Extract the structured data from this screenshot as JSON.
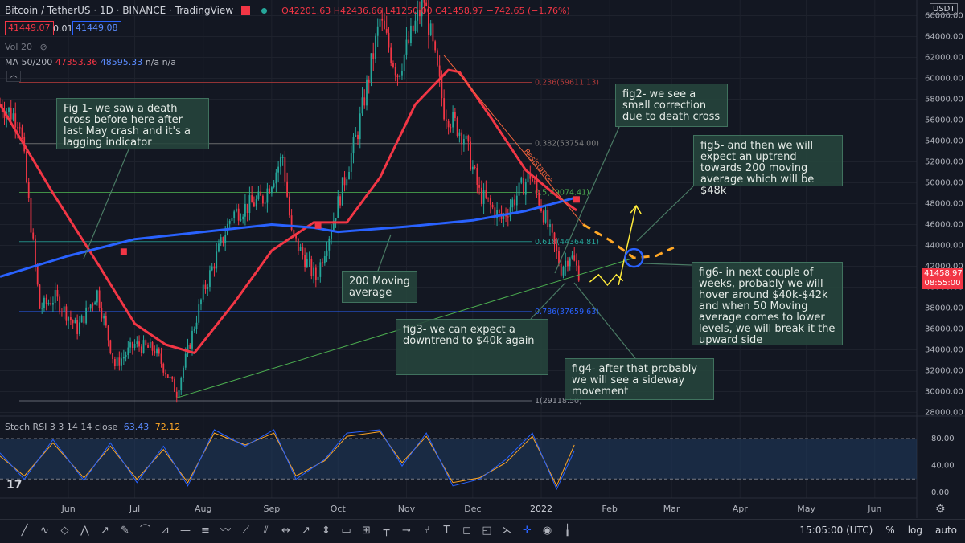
{
  "header": {
    "symbol": "Bitcoin / TetherUS · 1D · BINANCE · TradingView",
    "ohlc": "O42201.63 H42436.66 L41250.00 C41458.97 −742.65 (−1.76%)",
    "bid": "41449.07",
    "spread": "0.01",
    "ask": "41449.08",
    "vol": "Vol 20",
    "ma_label": "MA 50/200",
    "ma50_value": "47353.36",
    "ma200_value": "48595.33",
    "ma_na": "n/a n/a",
    "currency": "USDT"
  },
  "last_price": {
    "value": "41458.97",
    "time": "08:55:00"
  },
  "rsi_header": {
    "label": "Stoch RSI 3 3 14 14 close",
    "k": "63.43",
    "d": "72.12"
  },
  "colors": {
    "background": "#131722",
    "up": "#26a69a",
    "down": "#f23645",
    "ma50": "#f23645",
    "ma200": "#2962ff",
    "annotation": "#ffa726"
  },
  "chart_data": {
    "type": "candlestick",
    "ylim": [
      27500,
      67500
    ],
    "price_ticks": [
      28000,
      30000,
      32000,
      34000,
      36000,
      38000,
      40000,
      42000,
      44000,
      46000,
      48000,
      50000,
      52000,
      54000,
      56000,
      58000,
      60000,
      62000,
      64000,
      66000
    ],
    "price_tick_labels": [
      "28000.00",
      "30000.00",
      "32000.00",
      "34000.00",
      "36000.00",
      "38000.00",
      "40000.00",
      "42000.00",
      "44000.00",
      "46000.00",
      "48000.00",
      "50000.00",
      "52000.00",
      "54000.00",
      "56000.00",
      "58000.00",
      "60000.00",
      "62000.00",
      "64000.00",
      "66000.00"
    ],
    "x_labels": [
      "Jun",
      "Jul",
      "Aug",
      "Sep",
      "Oct",
      "Nov",
      "Dec",
      "2022",
      "Feb",
      "Mar",
      "Apr",
      "May",
      "Jun"
    ],
    "x_label_dates": [
      "2021-06-01",
      "2021-07-01",
      "2021-08-01",
      "2021-09-01",
      "2021-10-01",
      "2021-11-01",
      "2021-12-01",
      "2022-01-01",
      "2022-02-01",
      "2022-03-01",
      "2022-04-01",
      "2022-05-01",
      "2022-06-01"
    ],
    "close_path": [
      [
        "2021-05-01",
        57500
      ],
      [
        "2021-05-10",
        56000
      ],
      [
        "2021-05-19",
        38000
      ],
      [
        "2021-05-26",
        39000
      ],
      [
        "2021-06-05",
        36000
      ],
      [
        "2021-06-14",
        39500
      ],
      [
        "2021-06-22",
        32500
      ],
      [
        "2021-07-01",
        34500
      ],
      [
        "2021-07-10",
        34000
      ],
      [
        "2021-07-20",
        29900
      ],
      [
        "2021-08-01",
        39500
      ],
      [
        "2021-08-14",
        47000
      ],
      [
        "2021-08-28",
        48500
      ],
      [
        "2021-09-06",
        52500
      ],
      [
        "2021-09-10",
        45000
      ],
      [
        "2021-09-21",
        40800
      ],
      [
        "2021-10-01",
        48000
      ],
      [
        "2021-10-10",
        55000
      ],
      [
        "2021-10-20",
        65500
      ],
      [
        "2021-10-28",
        60500
      ],
      [
        "2021-11-09",
        67500
      ],
      [
        "2021-11-18",
        57000
      ],
      [
        "2021-11-27",
        54500
      ],
      [
        "2021-12-04",
        49000
      ],
      [
        "2021-12-14",
        46500
      ],
      [
        "2021-12-27",
        50800
      ],
      [
        "2022-01-03",
        46500
      ],
      [
        "2022-01-10",
        41800
      ],
      [
        "2022-01-14",
        43200
      ],
      [
        "2022-01-18",
        41400
      ]
    ],
    "ma50": [
      [
        "2021-05-01",
        57500
      ],
      [
        "2021-05-25",
        49000
      ],
      [
        "2021-06-15",
        42000
      ],
      [
        "2021-07-01",
        36500
      ],
      [
        "2021-07-15",
        34500
      ],
      [
        "2021-07-28",
        33700
      ],
      [
        "2021-08-15",
        38500
      ],
      [
        "2021-09-01",
        43500
      ],
      [
        "2021-09-20",
        46200
      ],
      [
        "2021-10-05",
        46200
      ],
      [
        "2021-10-20",
        50500
      ],
      [
        "2021-11-05",
        57500
      ],
      [
        "2021-11-20",
        60800
      ],
      [
        "2021-11-25",
        60600
      ],
      [
        "2021-12-10",
        56000
      ],
      [
        "2021-12-25",
        51200
      ],
      [
        "2022-01-10",
        48400
      ],
      [
        "2022-01-17",
        47350
      ]
    ],
    "ma200": [
      [
        "2021-05-01",
        41000
      ],
      [
        "2021-06-01",
        43000
      ],
      [
        "2021-07-01",
        44600
      ],
      [
        "2021-08-01",
        45300
      ],
      [
        "2021-09-01",
        46000
      ],
      [
        "2021-09-20",
        45700
      ],
      [
        "2021-10-01",
        45300
      ],
      [
        "2021-11-01",
        45800
      ],
      [
        "2021-12-01",
        46400
      ],
      [
        "2021-12-25",
        47300
      ],
      [
        "2022-01-10",
        48200
      ],
      [
        "2022-01-17",
        48600
      ]
    ],
    "fib_levels": [
      {
        "label": "0.236(59611.13)",
        "value": 59611.13
      },
      {
        "label": "0.382(53754.00)",
        "value": 53754.0
      },
      {
        "label": "0.5(49074.41)",
        "value": 49074.41
      },
      {
        "label": "0.618(44364.81)",
        "value": 44364.81
      },
      {
        "label": "0.786(37659.63)",
        "value": 37659.63
      },
      {
        "label": "1(29118.50)",
        "value": 29118.5
      }
    ],
    "resistance_label": "Resistance",
    "resistance_line": [
      [
        "2021-11-18",
        62200
      ],
      [
        "2022-01-20",
        46000
      ]
    ],
    "support_line": [
      [
        "2021-07-20",
        29400
      ],
      [
        "2022-02-12",
        42800
      ]
    ],
    "projection_dashed": [
      [
        "2022-01-20",
        46000
      ],
      [
        "2022-02-01",
        44500
      ],
      [
        "2022-02-12",
        42800
      ],
      [
        "2022-02-22",
        43000
      ],
      [
        "2022-03-02",
        43800
      ]
    ],
    "sideways_path": [
      [
        "2022-01-23",
        40500
      ],
      [
        "2022-01-27",
        41200
      ],
      [
        "2022-01-31",
        40200
      ],
      [
        "2022-02-04",
        41200
      ],
      [
        "2022-02-07",
        40600
      ]
    ],
    "uptrend_arrow": [
      [
        "2022-02-05",
        40200
      ],
      [
        "2022-02-13",
        47800
      ]
    ],
    "crossover_markers": [
      [
        "2021-06-26",
        43400
      ],
      [
        "2021-09-22",
        45900
      ],
      [
        "2022-01-17",
        48400
      ]
    ],
    "circle_point": [
      "2022-02-12",
      42800
    ]
  },
  "rsi_data": {
    "ticks": [
      0,
      40,
      80
    ],
    "tick_labels": [
      "0.00",
      "40.00",
      "80.00"
    ],
    "k": [
      [
        "2021-05-01",
        60
      ],
      [
        "2021-05-12",
        20
      ],
      [
        "2021-05-25",
        80
      ],
      [
        "2021-06-08",
        18
      ],
      [
        "2021-06-20",
        75
      ],
      [
        "2021-07-02",
        15
      ],
      [
        "2021-07-14",
        70
      ],
      [
        "2021-07-25",
        10
      ],
      [
        "2021-08-06",
        95
      ],
      [
        "2021-08-20",
        70
      ],
      [
        "2021-09-02",
        95
      ],
      [
        "2021-09-12",
        20
      ],
      [
        "2021-09-25",
        50
      ],
      [
        "2021-10-05",
        90
      ],
      [
        "2021-10-20",
        95
      ],
      [
        "2021-10-30",
        40
      ],
      [
        "2021-11-10",
        90
      ],
      [
        "2021-11-22",
        10
      ],
      [
        "2021-12-04",
        20
      ],
      [
        "2021-12-16",
        50
      ],
      [
        "2021-12-28",
        90
      ],
      [
        "2022-01-08",
        5
      ],
      [
        "2022-01-16",
        63
      ]
    ],
    "d": [
      [
        "2021-05-01",
        55
      ],
      [
        "2021-05-12",
        25
      ],
      [
        "2021-05-25",
        75
      ],
      [
        "2021-06-08",
        22
      ],
      [
        "2021-06-20",
        70
      ],
      [
        "2021-07-02",
        20
      ],
      [
        "2021-07-14",
        65
      ],
      [
        "2021-07-25",
        15
      ],
      [
        "2021-08-06",
        90
      ],
      [
        "2021-08-20",
        72
      ],
      [
        "2021-09-02",
        90
      ],
      [
        "2021-09-12",
        25
      ],
      [
        "2021-09-25",
        48
      ],
      [
        "2021-10-05",
        85
      ],
      [
        "2021-10-20",
        92
      ],
      [
        "2021-10-30",
        45
      ],
      [
        "2021-11-10",
        85
      ],
      [
        "2021-11-22",
        15
      ],
      [
        "2021-12-04",
        22
      ],
      [
        "2021-12-16",
        45
      ],
      [
        "2021-12-28",
        85
      ],
      [
        "2022-01-08",
        10
      ],
      [
        "2022-01-16",
        72
      ]
    ]
  },
  "notes": {
    "fig1": "Fig 1- we saw a death cross before here after last May crash and it's a lagging indicator",
    "fig2": "fig2- we see a small correction due to death cross",
    "fig3": "fig3- we can expect a downtrend to $40k again",
    "fig4": "fig4- after that probably we will see a sideway movement",
    "fig5": "fig5- and then we will expect an uptrend towards 200 moving average which will be $48k",
    "fig6": "fig6- in next couple of weeks, probably we will hover around $40k-$42k and when 50 Moving average comes to lower levels, we will break it the upward side",
    "ma200": "200 Moving average"
  },
  "toolbar": {
    "time": "15:05:00 (UTC)",
    "percent": "%",
    "log": "log",
    "auto": "auto"
  }
}
